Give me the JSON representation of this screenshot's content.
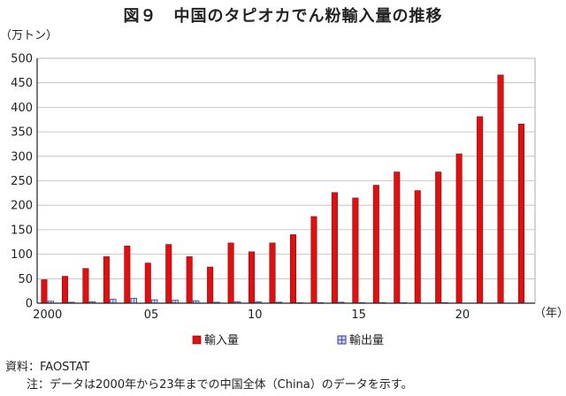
{
  "chart_data": {
    "type": "bar",
    "title": "図９　中国のタピオカでん粉輸入量の推移",
    "ylabel": "（万トン）",
    "xlabel_unit": "（年）",
    "ylim": [
      0,
      500
    ],
    "yticks": [
      0,
      50,
      100,
      150,
      200,
      250,
      300,
      350,
      400,
      450,
      500
    ],
    "grid": true,
    "legend_position": "bottom",
    "categories": [
      2000,
      2001,
      2002,
      2003,
      2004,
      2005,
      2006,
      2007,
      2008,
      2009,
      2010,
      2011,
      2012,
      2013,
      2014,
      2015,
      2016,
      2017,
      2018,
      2019,
      2020,
      2021,
      2022,
      2023
    ],
    "xtick_labels": [
      {
        "category": 2000,
        "label": "2000"
      },
      {
        "category": 2005,
        "label": "05"
      },
      {
        "category": 2010,
        "label": "10"
      },
      {
        "category": 2015,
        "label": "15"
      },
      {
        "category": 2020,
        "label": "20"
      }
    ],
    "series": [
      {
        "name": "輸入量",
        "color": "#e01010",
        "values": [
          48,
          55,
          71,
          95,
          117,
          82,
          120,
          95,
          74,
          123,
          105,
          123,
          140,
          177,
          226,
          215,
          241,
          268,
          230,
          268,
          305,
          381,
          466,
          366
        ]
      },
      {
        "name": "輸出量",
        "color": "#3a3aa0",
        "values": [
          4,
          2,
          3,
          8,
          10,
          7,
          6,
          5,
          2,
          3,
          3,
          2,
          1,
          1,
          2,
          1,
          1,
          1,
          0,
          1,
          0,
          0,
          0,
          0
        ]
      }
    ]
  },
  "footnotes": {
    "source": "資料：FAOSTAT",
    "note": "注：データは2000年から23年までの中国全体（China）のデータを示す。"
  },
  "colors": {
    "import": "#e01010",
    "export": "#3a3aa0",
    "grid": "#bbbbbb",
    "axis": "#222222"
  }
}
